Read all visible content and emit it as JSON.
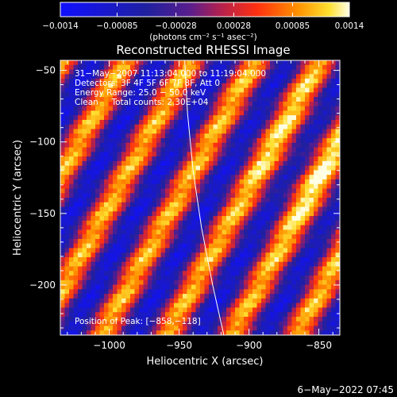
{
  "chart_data": {
    "type": "heatmap",
    "title": "Reconstructed RHESSI Image",
    "xlabel": "Heliocentric X (arcsec)",
    "ylabel": "Heliocentric Y (arcsec)",
    "xlim": [
      -1035,
      -835
    ],
    "ylim": [
      -235,
      -43
    ],
    "x_ticks": [
      {
        "value": -1000,
        "label": "−1000"
      },
      {
        "value": -950,
        "label": "−950"
      },
      {
        "value": -900,
        "label": "−900"
      },
      {
        "value": -850,
        "label": "−850"
      }
    ],
    "y_ticks": [
      {
        "value": -50,
        "label": "−50"
      },
      {
        "value": -100,
        "label": "−100"
      },
      {
        "value": -150,
        "label": "−150"
      },
      {
        "value": -200,
        "label": "−200"
      }
    ],
    "colorbar": {
      "min": -0.0014,
      "max": 0.0014,
      "tick_values": [
        -0.0014,
        -0.00085,
        -0.00028,
        0.00028,
        0.00085,
        0.0014
      ],
      "tick_labels": [
        "−0.0014",
        "−0.00085",
        "−0.00028",
        "0.00028",
        "0.00085",
        "0.0014"
      ],
      "units_label": "(photons cm⁻² s⁻¹ asec⁻²)"
    },
    "annotations": [
      "31−May−2007 11:13:04.000 to 11:19:04.000",
      "Detectors: 3F 4F 5F 6F 7F 8F, Att 0",
      "Energy Range: 25.0 − 50.0 keV",
      "Clean     Total counts: 2.30E+04"
    ],
    "peak_label": "Position of Peak: [−858,−118]",
    "limb_arc": [
      {
        "x": -946,
        "y": -43
      },
      {
        "x": -944,
        "y": -80
      },
      {
        "x": -940,
        "y": -120
      },
      {
        "x": -934,
        "y": -160
      },
      {
        "x": -926,
        "y": -200
      },
      {
        "x": -918,
        "y": -235
      }
    ],
    "stripe_pattern": {
      "grid": [
        64,
        60
      ],
      "stripes_per_axis": 4.3,
      "tilt": 0.55,
      "peak": {
        "x": -858,
        "y": -118
      }
    }
  },
  "footer": {
    "timestamp": "6−May−2022 07:45"
  },
  "colors": {
    "background": "#000000",
    "text": "#ffffff"
  }
}
